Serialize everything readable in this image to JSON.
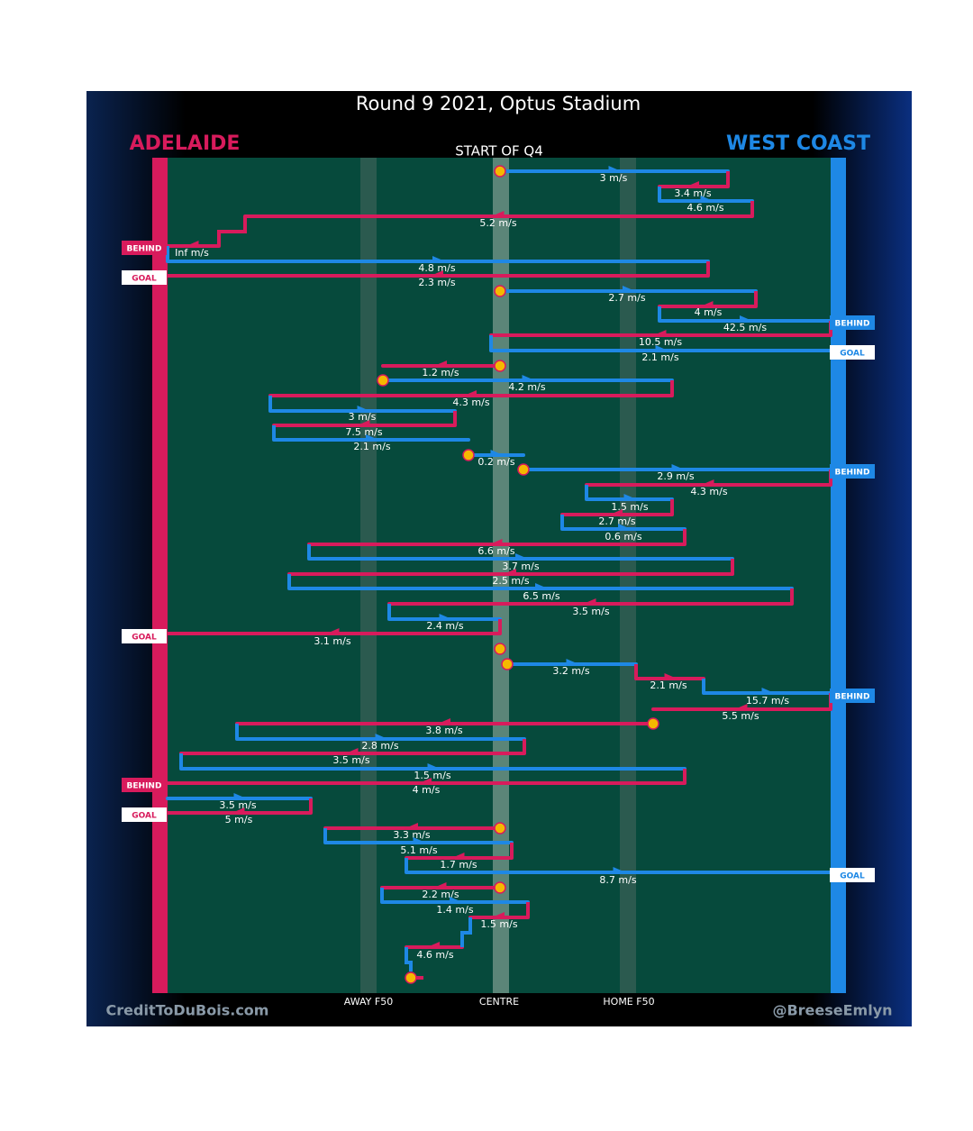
{
  "header": {
    "title": "Round 9 2021, Optus Stadium",
    "home_team": "ADELAIDE",
    "away_team": "WEST COAST",
    "period": "START OF Q4"
  },
  "zones": [
    "AWAY F50",
    "CENTRE",
    "HOME F50"
  ],
  "credits": {
    "left": "CreditToDuBois.com",
    "right": "@BreeseEmlyn"
  },
  "speeds": [
    "3 m/s",
    "3.4 m/s",
    "4.6 m/s",
    "5.2 m/s",
    "Inf m/s",
    "4.8 m/s",
    "2.3 m/s",
    "2.7 m/s",
    "4 m/s",
    "42.5 m/s",
    "10.5 m/s",
    "2.1 m/s",
    "1.2 m/s",
    "4.2 m/s",
    "4.3 m/s",
    "3 m/s",
    "7.5 m/s",
    "2.1 m/s",
    "0.2 m/s",
    "2.9 m/s",
    "4.3 m/s",
    "1.5 m/s",
    "2.7 m/s",
    "0.6 m/s",
    "6.6 m/s",
    "3.7 m/s",
    "2.5 m/s",
    "6.5 m/s",
    "3.5 m/s",
    "2.4 m/s",
    "3.1 m/s",
    "3.2 m/s",
    "2.1 m/s",
    "15.7 m/s",
    "5.5 m/s",
    "3.8 m/s",
    "2.8 m/s",
    "3.5 m/s",
    "1.5 m/s",
    "4 m/s",
    "3.5 m/s",
    "5 m/s",
    "3.3 m/s",
    "5.1 m/s",
    "1.7 m/s",
    "8.7 m/s",
    "2.2 m/s",
    "1.4 m/s",
    "1.5 m/s",
    "4.6 m/s"
  ],
  "tags": [
    "BEHIND",
    "GOAL",
    "BEHIND",
    "GOAL",
    "BEHIND",
    "GOAL",
    "BEHIND",
    "BEHIND",
    "GOAL",
    "GOAL"
  ]
}
